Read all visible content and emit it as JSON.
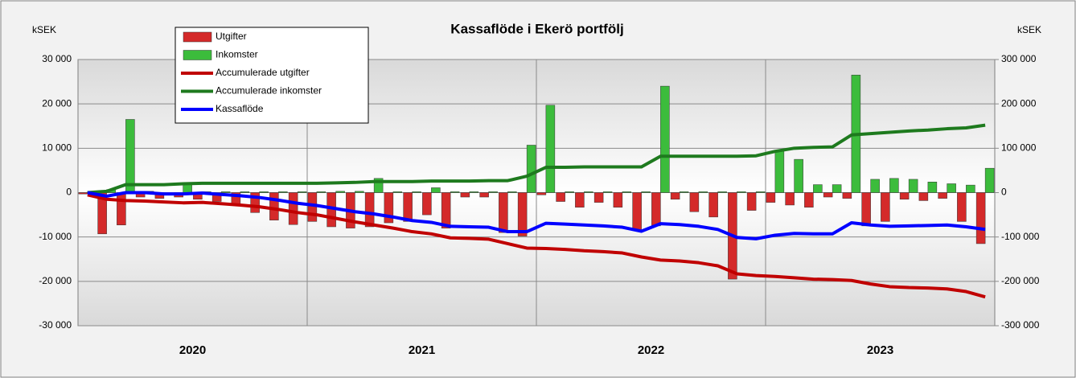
{
  "chart_data": {
    "type": "bar",
    "title": "Kassaflöde i Ekerö portfölj",
    "y_label": "kSEK",
    "y2_label": "kSEK",
    "categories": [
      null,
      null,
      null,
      null,
      null,
      null,
      null,
      null,
      null,
      null,
      null,
      null,
      null,
      null,
      null,
      null,
      null,
      null,
      null,
      null,
      null,
      null,
      null,
      null,
      null,
      null,
      null,
      null,
      null,
      null,
      null,
      null,
      null,
      null,
      null,
      null,
      null,
      null,
      null,
      null,
      null,
      null,
      null,
      null,
      null,
      null,
      null,
      null
    ],
    "x_groups": [
      "2020",
      "2021",
      "2022",
      "2023"
    ],
    "ylim": [
      -30000,
      30000
    ],
    "yticks": [
      {
        "value": -30000,
        "label": "-30 000"
      },
      {
        "value": -20000,
        "label": "-20 000"
      },
      {
        "value": -10000,
        "label": "-10 000"
      },
      0,
      {
        "value": 10000,
        "label": "10 000"
      },
      {
        "value": 20000,
        "label": "20 000"
      },
      {
        "value": 30000,
        "label": "30 000"
      }
    ],
    "y2lim": [
      -300000,
      300000
    ],
    "y2ticks": [
      {
        "value": -300000,
        "label": "-300 000"
      },
      {
        "value": -200000,
        "label": "-200 000"
      },
      {
        "value": -100000,
        "label": "-100 000"
      },
      0,
      {
        "value": 100000,
        "label": "100 000"
      },
      {
        "value": 200000,
        "label": "200 000"
      },
      {
        "value": 300000,
        "label": "300 000"
      }
    ],
    "grid": true,
    "legend": "top-left",
    "series": [
      {
        "name": "Utgifter",
        "type": "bar",
        "color": "#d42a2a",
        "values": [
          -300,
          -9300,
          -7300,
          -1000,
          -1300,
          -1000,
          -1500,
          -2000,
          -2800,
          -4500,
          -6200,
          -7200,
          -6500,
          -7700,
          -8000,
          -7700,
          -6800,
          -6500,
          -5000,
          -8000,
          -1000,
          -1000,
          -9000,
          -9800,
          -500,
          -2000,
          -3300,
          -2200,
          -3300,
          -8500,
          -7500,
          -1500,
          -4300,
          -5500,
          -19500,
          -4000,
          -2200,
          -2800,
          -3300,
          -1000,
          -1300,
          -7500,
          -6500,
          -1500,
          -1800,
          -1300,
          -6500,
          -11500
        ]
      },
      {
        "name": "Inkomster",
        "type": "bar",
        "color": "#3cbc3c",
        "values": [
          300,
          700,
          16500,
          300,
          0,
          2000,
          200,
          200,
          200,
          200,
          200,
          200,
          200,
          300,
          300,
          3200,
          200,
          200,
          1100,
          200,
          200,
          200,
          200,
          10700,
          19700,
          200,
          200,
          200,
          200,
          200,
          24000,
          200,
          200,
          200,
          200,
          200,
          9500,
          7500,
          1800,
          1800,
          26500,
          3000,
          3200,
          3000,
          2400,
          2000,
          1700,
          5500
        ]
      },
      {
        "name": "Accumulerade utgifter",
        "type": "line",
        "axis": "y2",
        "color": "#c00000",
        "values": [
          -5000,
          -15000,
          -18000,
          -19000,
          -21000,
          -23000,
          -22000,
          -25000,
          -28000,
          -32000,
          -38000,
          -45000,
          -50000,
          -58000,
          -66000,
          -73000,
          -80000,
          -88000,
          -93000,
          -102000,
          -103000,
          -105000,
          -115000,
          -125000,
          -126000,
          -128000,
          -131000,
          -133000,
          -136000,
          -145000,
          -152000,
          -154000,
          -158000,
          -165000,
          -183000,
          -187000,
          -189000,
          -192000,
          -195000,
          -196000,
          -198000,
          -206000,
          -212000,
          -214000,
          -215000,
          -217000,
          -223000,
          -235000
        ]
      },
      {
        "name": "Accumulerade inkomster",
        "type": "line",
        "axis": "y2",
        "color": "#1e7a1e",
        "values": [
          0,
          3000,
          18000,
          18000,
          18000,
          20000,
          21000,
          21000,
          21000,
          21000,
          21000,
          21000,
          21000,
          22000,
          23000,
          25000,
          25000,
          25000,
          26000,
          26000,
          26000,
          27000,
          27000,
          37000,
          57000,
          57000,
          58000,
          58000,
          58000,
          58000,
          82000,
          82000,
          82000,
          82000,
          82000,
          83000,
          93000,
          100000,
          102000,
          103000,
          130000,
          133000,
          136000,
          139000,
          141000,
          144000,
          146000,
          152000
        ]
      },
      {
        "name": "Kassaflöde",
        "type": "line",
        "axis": "y2",
        "color": "#0000ff",
        "values": [
          0,
          -8000,
          0,
          0,
          -3000,
          -3000,
          -1000,
          -4000,
          -7000,
          -11000,
          -17000,
          -24000,
          -29000,
          -36000,
          -43000,
          -48000,
          -55000,
          -63000,
          -67000,
          -76000,
          -77000,
          -78000,
          -88000,
          -88000,
          -69000,
          -71000,
          -73000,
          -75000,
          -78000,
          -87000,
          -70000,
          -72000,
          -76000,
          -83000,
          -101000,
          -104000,
          -96000,
          -92000,
          -93000,
          -93000,
          -68000,
          -73000,
          -76000,
          -75000,
          -74000,
          -73000,
          -77000,
          -83000
        ]
      }
    ]
  }
}
